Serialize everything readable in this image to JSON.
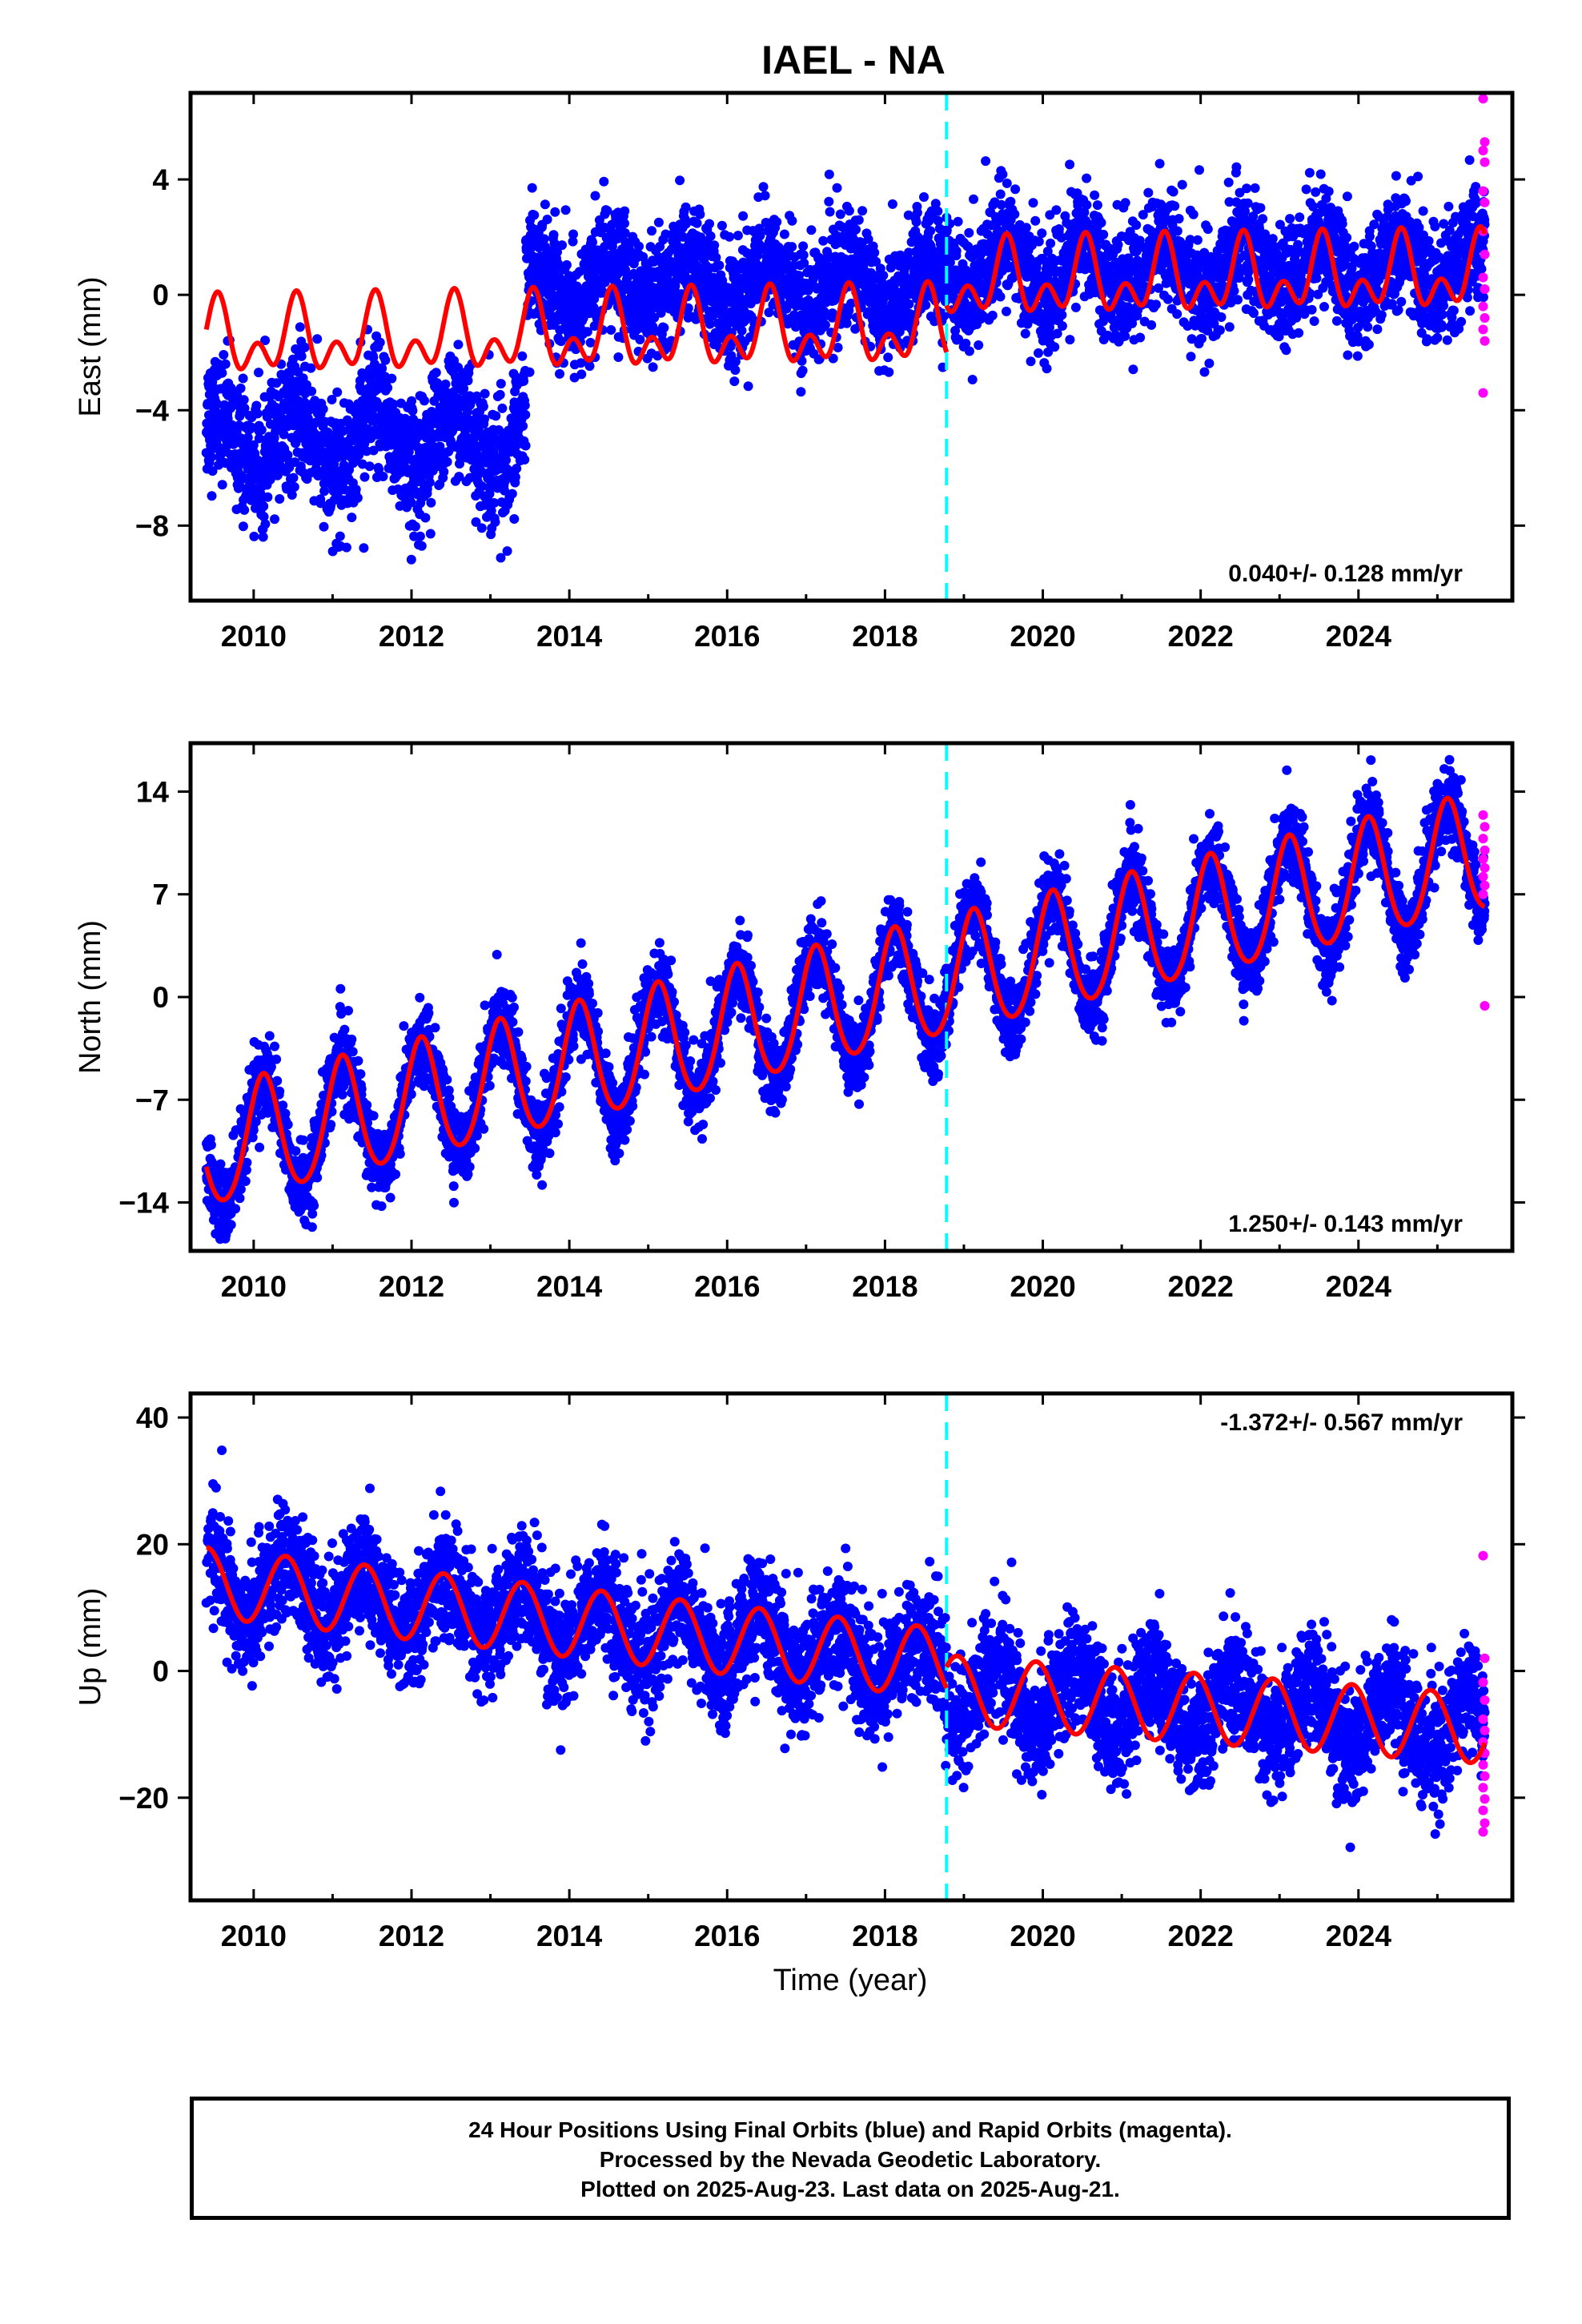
{
  "title": "IAEL - NA",
  "xlabel": "Time (year)",
  "footer": {
    "line1": "24 Hour Positions Using Final Orbits (blue) and Rapid Orbits (magenta).",
    "line2": "Processed by the Nevada Geodetic Laboratory.",
    "line3": "Plotted on 2025-Aug-23. Last data on 2025-Aug-21."
  },
  "colors": {
    "final_orbits": "#0000ff",
    "rapid_orbits": "#ff00ff",
    "model": "#ff0000",
    "equipment_change": "#00ffff"
  },
  "chart_data": [
    {
      "type": "scatter",
      "component": "east",
      "ylabel": "East (mm)",
      "rate_label": "0.040+/- 0.128 mm/yr",
      "xlim": [
        2009.2,
        2025.95
      ],
      "ylim": [
        -10.6,
        7.0
      ],
      "xticks": [
        2010,
        2012,
        2014,
        2016,
        2018,
        2020,
        2022,
        2024
      ],
      "yticks": [
        4,
        0,
        -4,
        -8
      ],
      "ytick_labels": [
        "4",
        "0",
        "−4",
        "−8"
      ],
      "equipment_change_year": 2018.78,
      "approx_scatter_segments": [
        {
          "from": 2009.4,
          "to": 2013.45,
          "mean": -5.0,
          "amp": 1.0,
          "noise": 1.1
        },
        {
          "from": 2013.45,
          "to": 2018.78,
          "mean": 0.3,
          "amp": 0.8,
          "noise": 1.0
        },
        {
          "from": 2018.78,
          "to": 2025.6,
          "mean": 0.9,
          "amp": 0.9,
          "noise": 1.0
        }
      ],
      "model_segments": [
        {
          "from": 2009.4,
          "to": 2018.78,
          "offset": -1.6,
          "trend": 0.04,
          "t0": 2009.4,
          "annual_amp": 0.9,
          "annual_phase": 4.5,
          "semi_amp": 0.8,
          "semi_phase": 1.0
        },
        {
          "from": 2018.78,
          "to": 2025.6,
          "offset": 0.4,
          "trend": 0.04,
          "t0": 2018.78,
          "annual_amp": 0.9,
          "annual_phase": 4.5,
          "semi_amp": 0.8,
          "semi_phase": 1.0
        }
      ],
      "rapid_points": [
        6.8,
        5.3,
        5.0,
        4.6,
        3.6,
        3.2,
        2.2,
        1.4,
        0.6,
        0.2,
        -0.4,
        -0.8,
        -1.2,
        -1.6,
        -3.4
      ]
    },
    {
      "type": "scatter",
      "component": "north",
      "ylabel": "North (mm)",
      "rate_label": "1.250+/- 0.143 mm/yr",
      "xlim": [
        2009.2,
        2025.95
      ],
      "ylim": [
        -17.3,
        17.3
      ],
      "xticks": [
        2010,
        2012,
        2014,
        2016,
        2018,
        2020,
        2022,
        2024
      ],
      "yticks": [
        14,
        7,
        0,
        -7,
        -14
      ],
      "ytick_labels": [
        "14",
        "7",
        "0",
        "−7",
        "−14"
      ],
      "equipment_change_year": 2018.78,
      "approx_scatter_segments": [
        {
          "from": 2009.4,
          "to": 2025.6,
          "start": -10.5,
          "trend": 1.25,
          "amp": 4.0,
          "noise": 1.3
        }
      ],
      "model_segments": [
        {
          "from": 2009.4,
          "to": 2025.6,
          "offset": -10.5,
          "trend": 1.25,
          "t0": 2009.4,
          "annual_amp": 4.0,
          "annual_phase": 0.8,
          "semi_amp": 0.4,
          "semi_phase": 0.0
        }
      ],
      "rapid_points": [
        12.4,
        11.6,
        10.8,
        10.0,
        9.4,
        8.8,
        8.2,
        7.6,
        7.0,
        -0.6
      ]
    },
    {
      "type": "scatter",
      "component": "up",
      "ylabel": "Up (mm)",
      "rate_label": "-1.372+/- 0.567 mm/yr",
      "xlim": [
        2009.2,
        2025.95
      ],
      "ylim": [
        -36.2,
        43.8
      ],
      "xticks": [
        2010,
        2012,
        2014,
        2016,
        2018,
        2020,
        2022,
        2024
      ],
      "yticks": [
        40,
        20,
        0,
        -20
      ],
      "ytick_labels": [
        "40",
        "20",
        "0",
        "−20"
      ],
      "equipment_change_year": 2018.78,
      "approx_scatter_segments": [
        {
          "from": 2009.4,
          "to": 2018.78,
          "start": 14.0,
          "trend": -1.4,
          "amp": 5.0,
          "noise": 4.5
        },
        {
          "from": 2018.78,
          "to": 2025.6,
          "start": -3.0,
          "trend": -0.9,
          "amp": 5.0,
          "noise": 4.5
        }
      ],
      "model_segments": [
        {
          "from": 2009.4,
          "to": 2018.78,
          "offset": 14.0,
          "trend": -1.37,
          "t0": 2009.4,
          "annual_amp": 5.5,
          "annual_phase": 5.3,
          "semi_amp": 0.0,
          "semi_phase": 0.0
        },
        {
          "from": 2018.78,
          "to": 2025.6,
          "offset": -3.0,
          "trend": -0.9,
          "t0": 2018.78,
          "annual_amp": 5.5,
          "annual_phase": 2.1,
          "semi_amp": 0.0,
          "semi_phase": 0.0
        }
      ],
      "rapid_points": [
        18.2,
        2.0,
        -1.8,
        -4.6,
        -7.6,
        -9.4,
        -11.2,
        -13.0,
        -14.8,
        -16.6,
        -18.4,
        -20.2,
        -22.0,
        -24.0,
        -25.4
      ]
    }
  ]
}
